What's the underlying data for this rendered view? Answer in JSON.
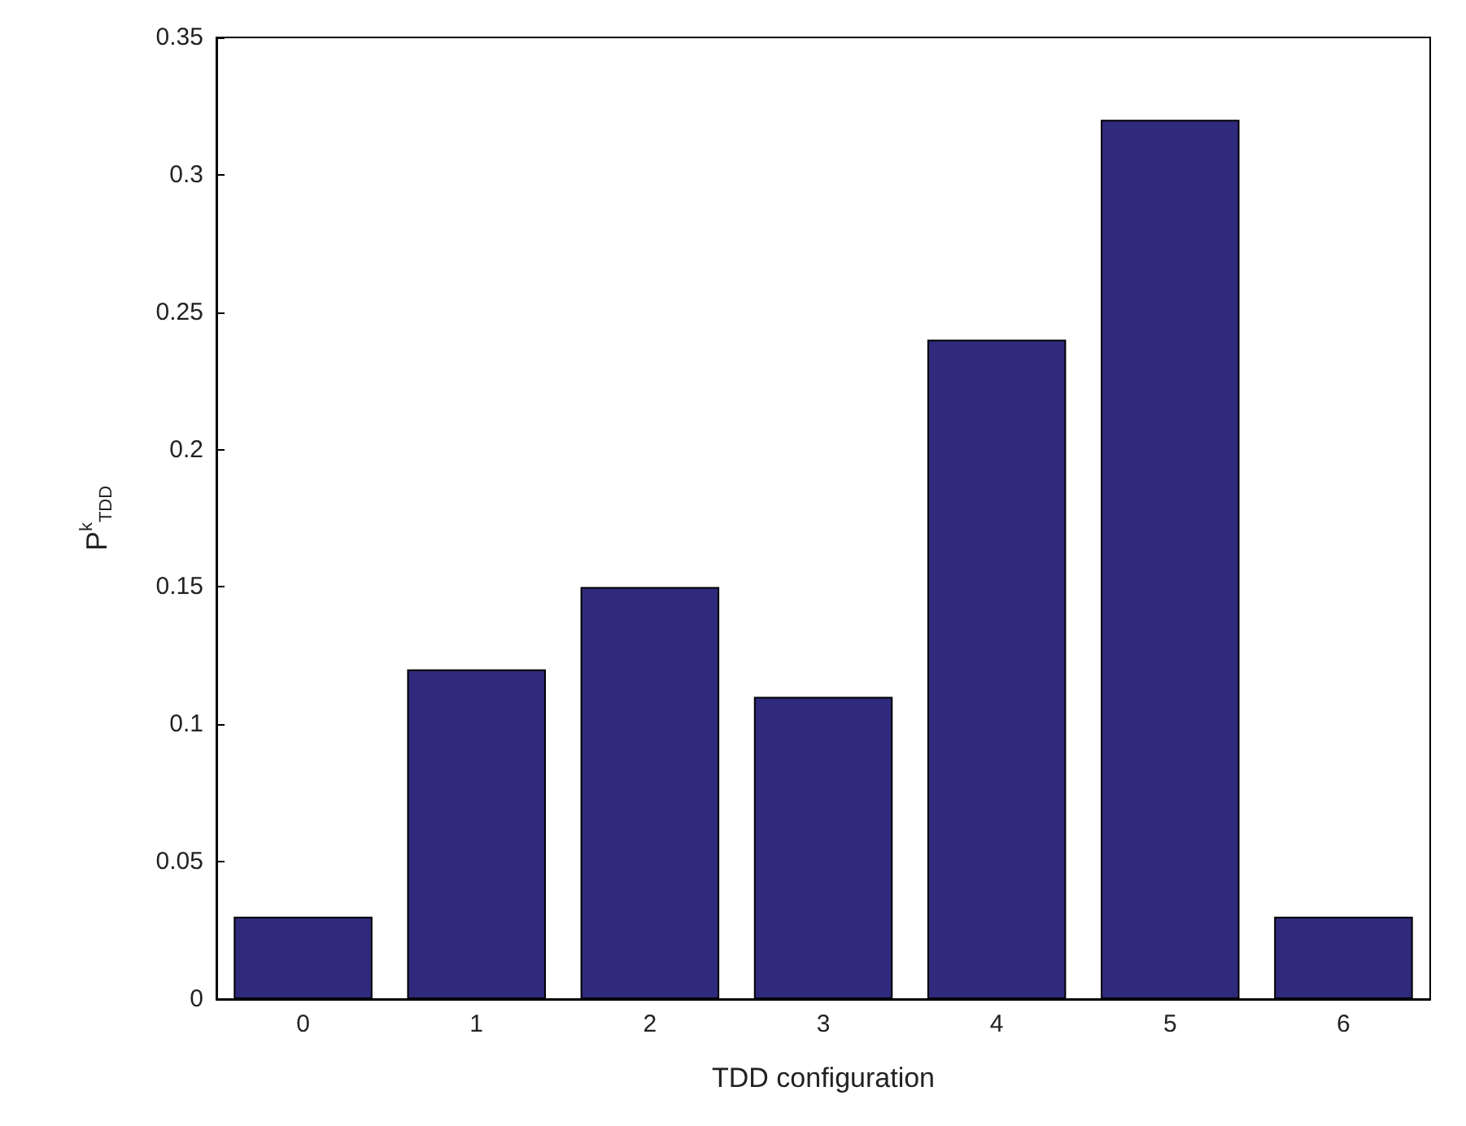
{
  "chart_data": {
    "type": "bar",
    "xlabel": "TDD configuration",
    "ylabel": "P$^{k}$$_{TDD}$",
    "categories": [
      "0",
      "1",
      "2",
      "3",
      "4",
      "5",
      "6"
    ],
    "values": [
      0.03,
      0.12,
      0.15,
      0.11,
      0.24,
      0.32,
      0.03
    ],
    "color": "#2f2a7c",
    "ylim": [
      0,
      0.35
    ],
    "yticks": [
      0,
      0.05,
      0.1,
      0.15,
      0.2,
      0.25,
      0.3,
      0.35
    ],
    "grid": false
  }
}
